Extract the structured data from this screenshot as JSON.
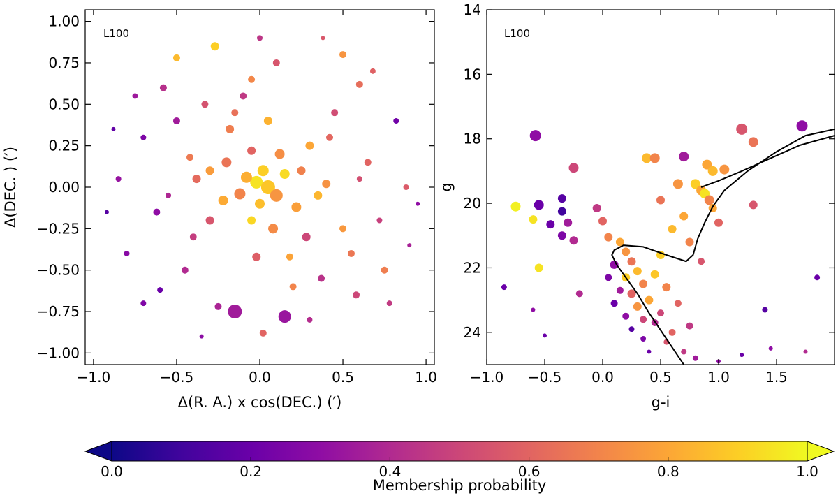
{
  "colorbar": {
    "label": "Membership probability",
    "ticks": [
      "0.0",
      "0.2",
      "0.4",
      "0.6",
      "0.8",
      "1.0"
    ],
    "tick_values": [
      0.0,
      0.2,
      0.4,
      0.6,
      0.8,
      1.0
    ],
    "range": [
      0.0,
      1.0
    ],
    "colormap": "plasma",
    "extend": "both"
  },
  "chart_data": [
    {
      "type": "scatter",
      "panel_label": "L100",
      "title": "",
      "xlabel": "Δ(R. A.) x cos(DEC.) (′)",
      "ylabel": "Δ(DEC. ) (′)",
      "xlim": [
        -1.05,
        1.05
      ],
      "ylim": [
        -1.07,
        1.07
      ],
      "xticks": [
        -1.0,
        -0.5,
        0.0,
        0.5,
        1.0
      ],
      "xtick_labels": [
        "−1.0",
        "−0.5",
        "0.0",
        "0.5",
        "1.0"
      ],
      "yticks": [
        1.0,
        0.75,
        0.5,
        0.25,
        0.0,
        -0.25,
        -0.5,
        -0.75,
        -1.0
      ],
      "ytick_labels": [
        "1.00",
        "0.75",
        "0.50",
        "0.25",
        "0.00",
        "−0.25",
        "−0.50",
        "−0.75",
        "−1.00"
      ],
      "color_variable": "Membership probability",
      "size_variable": "g magnitude (brighter = larger)",
      "points": [
        [
          -0.02,
          0.03,
          0.95,
          9
        ],
        [
          0.05,
          0.0,
          0.88,
          10
        ],
        [
          -0.08,
          0.06,
          0.82,
          8
        ],
        [
          0.02,
          0.1,
          0.9,
          8
        ],
        [
          0.1,
          -0.05,
          0.75,
          9
        ],
        [
          -0.12,
          -0.04,
          0.7,
          8
        ],
        [
          0.0,
          -0.1,
          0.86,
          7
        ],
        [
          0.15,
          0.08,
          0.93,
          7
        ],
        [
          -0.2,
          0.15,
          0.65,
          7
        ],
        [
          0.22,
          -0.12,
          0.78,
          7
        ],
        [
          -0.05,
          0.22,
          0.6,
          6
        ],
        [
          0.08,
          -0.25,
          0.72,
          7
        ],
        [
          -0.3,
          -0.2,
          0.55,
          6
        ],
        [
          0.3,
          0.25,
          0.8,
          6
        ],
        [
          -0.18,
          0.35,
          0.68,
          6
        ],
        [
          0.28,
          -0.3,
          0.5,
          6
        ],
        [
          -0.38,
          0.05,
          0.62,
          6
        ],
        [
          0.4,
          0.02,
          0.74,
          6
        ],
        [
          0.05,
          0.4,
          0.83,
          6
        ],
        [
          -0.02,
          -0.42,
          0.58,
          6
        ],
        [
          -0.1,
          0.55,
          0.45,
          5
        ],
        [
          0.45,
          0.45,
          0.52,
          5
        ],
        [
          -0.5,
          0.4,
          0.35,
          5
        ],
        [
          0.55,
          -0.4,
          0.66,
          5
        ],
        [
          -0.45,
          -0.5,
          0.4,
          5
        ],
        [
          0.2,
          -0.6,
          0.7,
          5
        ],
        [
          -0.62,
          -0.15,
          0.3,
          5
        ],
        [
          0.65,
          0.15,
          0.6,
          5
        ],
        [
          -0.7,
          0.3,
          0.25,
          4
        ],
        [
          0.72,
          -0.2,
          0.48,
          4
        ],
        [
          0.1,
          0.75,
          0.55,
          5
        ],
        [
          -0.25,
          -0.72,
          0.38,
          5
        ],
        [
          -0.58,
          0.6,
          0.42,
          5
        ],
        [
          0.6,
          0.62,
          0.63,
          5
        ],
        [
          -0.6,
          -0.62,
          0.2,
          4
        ],
        [
          0.58,
          -0.65,
          0.5,
          5
        ],
        [
          -0.85,
          0.05,
          0.32,
          4
        ],
        [
          0.88,
          0.0,
          0.57,
          4
        ],
        [
          0.0,
          0.9,
          0.44,
          4
        ],
        [
          0.02,
          -0.88,
          0.6,
          5
        ],
        [
          -0.27,
          0.85,
          0.9,
          6
        ],
        [
          0.5,
          0.8,
          0.75,
          5
        ],
        [
          -0.8,
          -0.4,
          0.28,
          4
        ],
        [
          0.82,
          0.4,
          0.22,
          4
        ],
        [
          -0.15,
          -0.75,
          0.35,
          10
        ],
        [
          0.15,
          -0.78,
          0.33,
          9
        ],
        [
          -0.5,
          0.78,
          0.85,
          5
        ],
        [
          0.75,
          -0.5,
          0.68,
          5
        ],
        [
          -0.92,
          -0.15,
          0.15,
          3
        ],
        [
          0.95,
          -0.1,
          0.3,
          3
        ],
        [
          -0.3,
          0.1,
          0.77,
          6
        ],
        [
          0.35,
          -0.05,
          0.84,
          6
        ],
        [
          -0.05,
          -0.2,
          0.92,
          6
        ],
        [
          0.12,
          0.2,
          0.73,
          7
        ],
        [
          -0.22,
          -0.08,
          0.81,
          7
        ],
        [
          0.25,
          0.1,
          0.69,
          6
        ],
        [
          -0.4,
          -0.3,
          0.47,
          5
        ],
        [
          0.42,
          0.3,
          0.61,
          5
        ],
        [
          -0.33,
          0.5,
          0.54,
          5
        ],
        [
          0.37,
          -0.55,
          0.43,
          5
        ],
        [
          -0.7,
          -0.7,
          0.26,
          4
        ],
        [
          0.68,
          0.7,
          0.59,
          4
        ],
        [
          -0.75,
          0.55,
          0.34,
          4
        ],
        [
          0.78,
          -0.7,
          0.46,
          4
        ],
        [
          -0.05,
          0.65,
          0.71,
          5
        ],
        [
          0.3,
          -0.8,
          0.41,
          4
        ],
        [
          -0.42,
          0.18,
          0.67,
          5
        ],
        [
          0.5,
          -0.25,
          0.76,
          5
        ],
        [
          -0.15,
          0.45,
          0.64,
          5
        ],
        [
          0.18,
          -0.42,
          0.79,
          5
        ],
        [
          -0.55,
          -0.05,
          0.39,
          4
        ],
        [
          0.6,
          0.05,
          0.53,
          4
        ],
        [
          -0.88,
          0.35,
          0.18,
          3
        ],
        [
          0.9,
          -0.35,
          0.37,
          3
        ],
        [
          -0.35,
          -0.9,
          0.29,
          3
        ],
        [
          0.38,
          0.9,
          0.56,
          3
        ]
      ]
    },
    {
      "type": "scatter",
      "panel_label": "L100",
      "title": "",
      "xlabel": "g-i",
      "ylabel": "g",
      "xlim": [
        -1.0,
        2.0
      ],
      "ylim": [
        25.0,
        14.0
      ],
      "xticks": [
        -1.0,
        -0.5,
        0.0,
        0.5,
        1.0,
        1.5
      ],
      "xtick_labels": [
        "−1.0",
        "−0.5",
        "0.0",
        "0.5",
        "1.0",
        "1.5"
      ],
      "yticks": [
        14,
        16,
        18,
        20,
        22,
        24
      ],
      "ytick_labels": [
        "14",
        "16",
        "18",
        "20",
        "22",
        "24"
      ],
      "color_variable": "Membership probability",
      "size_variable": "brightness (brighter = larger)",
      "points": [
        [
          1.72,
          17.6,
          0.3,
          8
        ],
        [
          1.2,
          17.7,
          0.55,
          8
        ],
        [
          1.3,
          18.1,
          0.65,
          7
        ],
        [
          -0.58,
          17.9,
          0.3,
          8
        ],
        [
          0.38,
          18.6,
          0.85,
          7
        ],
        [
          0.45,
          18.6,
          0.7,
          7
        ],
        [
          0.7,
          18.55,
          0.35,
          7
        ],
        [
          -0.25,
          18.9,
          0.5,
          7
        ],
        [
          0.9,
          18.8,
          0.8,
          7
        ],
        [
          0.95,
          19.0,
          0.85,
          7
        ],
        [
          1.05,
          18.95,
          0.75,
          7
        ],
        [
          0.65,
          19.4,
          0.75,
          7
        ],
        [
          0.8,
          19.4,
          0.9,
          7
        ],
        [
          0.85,
          19.6,
          0.8,
          7
        ],
        [
          0.88,
          19.7,
          0.95,
          7
        ],
        [
          0.92,
          19.9,
          0.7,
          7
        ],
        [
          0.5,
          19.9,
          0.65,
          6
        ],
        [
          0.95,
          20.15,
          0.8,
          6
        ],
        [
          1.3,
          20.05,
          0.55,
          6
        ],
        [
          -0.75,
          20.1,
          0.98,
          7
        ],
        [
          -0.6,
          20.5,
          0.95,
          6
        ],
        [
          -0.55,
          20.05,
          0.2,
          7
        ],
        [
          -0.35,
          19.85,
          0.15,
          6
        ],
        [
          -0.35,
          20.25,
          0.1,
          6
        ],
        [
          -0.45,
          20.65,
          0.2,
          6
        ],
        [
          -0.3,
          20.6,
          0.35,
          6
        ],
        [
          -0.05,
          20.15,
          0.45,
          6
        ],
        [
          0.0,
          20.55,
          0.6,
          6
        ],
        [
          -0.35,
          21.0,
          0.25,
          6
        ],
        [
          -0.25,
          21.15,
          0.4,
          6
        ],
        [
          0.05,
          21.05,
          0.7,
          6
        ],
        [
          0.15,
          21.2,
          0.8,
          6
        ],
        [
          0.2,
          21.5,
          0.75,
          6
        ],
        [
          0.25,
          21.8,
          0.65,
          6
        ],
        [
          0.3,
          22.1,
          0.85,
          6
        ],
        [
          0.2,
          22.3,
          0.9,
          6
        ],
        [
          0.35,
          22.5,
          0.7,
          6
        ],
        [
          0.25,
          22.8,
          0.6,
          6
        ],
        [
          0.4,
          23.0,
          0.8,
          6
        ],
        [
          0.3,
          23.2,
          0.75,
          6
        ],
        [
          0.5,
          23.4,
          0.5,
          5
        ],
        [
          0.45,
          23.7,
          0.4,
          5
        ],
        [
          0.6,
          24.0,
          0.6,
          5
        ],
        [
          0.55,
          24.3,
          0.55,
          4
        ],
        [
          0.7,
          24.6,
          0.45,
          4
        ],
        [
          0.8,
          24.8,
          0.35,
          4
        ],
        [
          1.0,
          24.9,
          0.3,
          3
        ],
        [
          1.2,
          24.7,
          0.2,
          3
        ],
        [
          0.1,
          21.9,
          0.3,
          6
        ],
        [
          0.05,
          22.3,
          0.25,
          5
        ],
        [
          0.15,
          22.7,
          0.35,
          5
        ],
        [
          0.1,
          23.1,
          0.2,
          5
        ],
        [
          0.2,
          23.5,
          0.3,
          5
        ],
        [
          0.25,
          23.9,
          0.15,
          4
        ],
        [
          0.35,
          24.2,
          0.25,
          4
        ],
        [
          0.4,
          24.6,
          0.2,
          3
        ],
        [
          -0.55,
          22.0,
          0.95,
          6
        ],
        [
          -0.2,
          22.8,
          0.4,
          5
        ],
        [
          -0.85,
          22.6,
          0.2,
          4
        ],
        [
          -0.6,
          23.3,
          0.3,
          3
        ],
        [
          -0.5,
          24.1,
          0.2,
          3
        ],
        [
          1.85,
          22.3,
          0.2,
          4
        ],
        [
          1.4,
          23.3,
          0.15,
          4
        ],
        [
          1.45,
          24.5,
          0.3,
          3
        ],
        [
          1.75,
          24.6,
          0.4,
          3
        ],
        [
          0.6,
          20.8,
          0.85,
          6
        ],
        [
          0.75,
          21.2,
          0.7,
          6
        ],
        [
          0.7,
          20.4,
          0.8,
          6
        ],
        [
          1.0,
          20.6,
          0.6,
          6
        ],
        [
          0.5,
          21.6,
          0.9,
          6
        ],
        [
          0.85,
          21.8,
          0.55,
          5
        ],
        [
          0.45,
          22.2,
          0.88,
          6
        ],
        [
          0.55,
          22.6,
          0.7,
          6
        ],
        [
          0.65,
          23.1,
          0.6,
          5
        ],
        [
          0.35,
          23.6,
          0.5,
          5
        ],
        [
          0.75,
          23.8,
          0.45,
          5
        ]
      ],
      "isochrone": {
        "label": "",
        "color": "#000000",
        "x": [
          0.7,
          0.55,
          0.4,
          0.3,
          0.2,
          0.12,
          0.08,
          0.1,
          0.18,
          0.35,
          0.55,
          0.72,
          0.78,
          0.82,
          0.88,
          0.95,
          1.05,
          1.25,
          1.5,
          1.75,
          2.0
        ],
        "y": [
          25.0,
          24.2,
          23.4,
          22.8,
          22.3,
          21.9,
          21.6,
          21.45,
          21.3,
          21.35,
          21.6,
          21.8,
          21.6,
          21.1,
          20.6,
          20.1,
          19.6,
          19.0,
          18.4,
          17.9,
          17.7
        ],
        "hb_x": [
          0.85,
          1.0,
          1.2,
          1.45,
          1.7,
          2.0
        ],
        "hb_y": [
          19.5,
          19.3,
          19.0,
          18.6,
          18.2,
          17.9
        ]
      }
    }
  ]
}
